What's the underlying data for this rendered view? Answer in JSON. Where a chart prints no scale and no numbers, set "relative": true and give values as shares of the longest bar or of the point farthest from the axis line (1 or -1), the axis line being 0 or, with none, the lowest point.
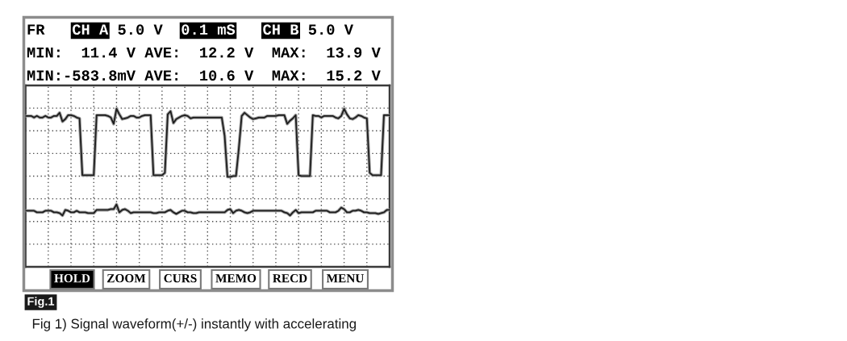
{
  "chart_data": {
    "type": "line",
    "relative": true,
    "categories": [
      null,
      null,
      null,
      null,
      null,
      null,
      null,
      null,
      null,
      null,
      null,
      null,
      null,
      null,
      null,
      null,
      null,
      null,
      null,
      null,
      null,
      null,
      null,
      null,
      null,
      null,
      null,
      null,
      null,
      null,
      null,
      null,
      null,
      null,
      null,
      null,
      null,
      null,
      null,
      null,
      null,
      null,
      null,
      null,
      null,
      null,
      null,
      null,
      null,
      null,
      null,
      null,
      null,
      null,
      null,
      null,
      null,
      null,
      null,
      null,
      null,
      null,
      null,
      null,
      null,
      null,
      null,
      null,
      null,
      null,
      null,
      null,
      null,
      null,
      null,
      null,
      null,
      null,
      null,
      null,
      null,
      null,
      null,
      null,
      null,
      null,
      null,
      null,
      null,
      null,
      null,
      null,
      null,
      null,
      null,
      null,
      null,
      null,
      null,
      null,
      null,
      null,
      null,
      null,
      null,
      null,
      null,
      null,
      null,
      null,
      null,
      null,
      null,
      null,
      null,
      null,
      null,
      null,
      null,
      null,
      null,
      null,
      null,
      null,
      null,
      null,
      null,
      null,
      null
    ],
    "series": [
      {
        "color": "#1e1e1e",
        "values": [
          0.955,
          0.955,
          0.955,
          0.945,
          0.955,
          0.945,
          0.945,
          0.955,
          0.945,
          0.945,
          0.955,
          0.955,
          0.975,
          0.92,
          0.935,
          0.96,
          0.96,
          0.955,
          0.945,
          0.94,
          0.58,
          0.58,
          0.58,
          0.58,
          0.58,
          0.96,
          0.96,
          0.96,
          0.96,
          0.955,
          0.945,
          0.905,
          1.0,
          0.965,
          0.935,
          0.94,
          0.945,
          0.955,
          0.955,
          0.945,
          0.945,
          0.955,
          0.96,
          0.96,
          0.96,
          0.58,
          0.58,
          0.58,
          0.58,
          0.595,
          0.965,
          0.985,
          0.91,
          0.935,
          0.945,
          0.955,
          0.96,
          0.955,
          0.94,
          0.945,
          0.945,
          0.945,
          0.945,
          0.945,
          0.945,
          0.945,
          0.945,
          0.945,
          0.945,
          0.945,
          0.83,
          0.57,
          0.57,
          0.575,
          0.575,
          0.75,
          0.955,
          0.975,
          0.96,
          0.945,
          0.935,
          0.94,
          0.945,
          0.945,
          0.945,
          0.955,
          0.955,
          0.955,
          0.955,
          0.96,
          0.96,
          0.96,
          0.905,
          0.925,
          0.94,
          0.96,
          0.58,
          0.575,
          0.575,
          0.575,
          0.575,
          0.96,
          0.955,
          0.955,
          0.945,
          0.955,
          0.955,
          0.955,
          0.955,
          0.945,
          0.94,
          0.955,
          1.0,
          0.965,
          0.94,
          0.935,
          0.945,
          0.96,
          0.955,
          0.945,
          0.94,
          0.595,
          0.58,
          0.58,
          0.58,
          0.58,
          0.96,
          0.96,
          0.96
        ]
      },
      {
        "color": "#1e1e1e",
        "values": [
          0.355,
          0.355,
          0.355,
          0.355,
          0.345,
          0.345,
          0.345,
          0.355,
          0.355,
          0.355,
          0.345,
          0.345,
          0.34,
          0.325,
          0.36,
          0.355,
          0.345,
          0.345,
          0.355,
          0.345,
          0.345,
          0.345,
          0.34,
          0.34,
          0.34,
          0.36,
          0.36,
          0.36,
          0.36,
          0.36,
          0.365,
          0.365,
          0.395,
          0.345,
          0.36,
          0.365,
          0.355,
          0.34,
          0.345,
          0.345,
          0.345,
          0.345,
          0.345,
          0.345,
          0.345,
          0.34,
          0.34,
          0.345,
          0.345,
          0.345,
          0.355,
          0.36,
          0.345,
          0.335,
          0.345,
          0.355,
          0.355,
          0.345,
          0.345,
          0.34,
          0.34,
          0.345,
          0.345,
          0.345,
          0.345,
          0.345,
          0.345,
          0.345,
          0.345,
          0.345,
          0.345,
          0.36,
          0.365,
          0.34,
          0.355,
          0.36,
          0.355,
          0.345,
          0.34,
          0.345,
          0.355,
          0.355,
          0.355,
          0.355,
          0.355,
          0.355,
          0.355,
          0.355,
          0.355,
          0.355,
          0.355,
          0.345,
          0.34,
          0.325,
          0.345,
          0.36,
          0.34,
          0.345,
          0.345,
          0.345,
          0.345,
          0.345,
          0.355,
          0.355,
          0.355,
          0.355,
          0.355,
          0.345,
          0.345,
          0.345,
          0.355,
          0.375,
          0.365,
          0.345,
          0.345,
          0.355,
          0.355,
          0.36,
          0.355,
          0.345,
          0.345,
          0.34,
          0.34,
          0.34,
          0.335,
          0.34,
          0.345,
          0.36,
          0.36
        ]
      }
    ],
    "grid": true,
    "tick_labels": false,
    "annotations": [
      "FR",
      "CH A",
      "5.0 V",
      "0.1 mS",
      "CH B",
      "5.0 V",
      "MIN:  11.4 V AVE:  12.2 V  MAX:  13.9 V",
      "MIN:-583.8mV AVE:  10.6 V  MAX:  15.2 V",
      "HOLD",
      "ZOOM",
      "CURS",
      "MEMO",
      "RECD",
      "MENU",
      "Fig.1",
      "Fig 1) Signal waveform(+/-) instantly with accelerating"
    ]
  }
}
